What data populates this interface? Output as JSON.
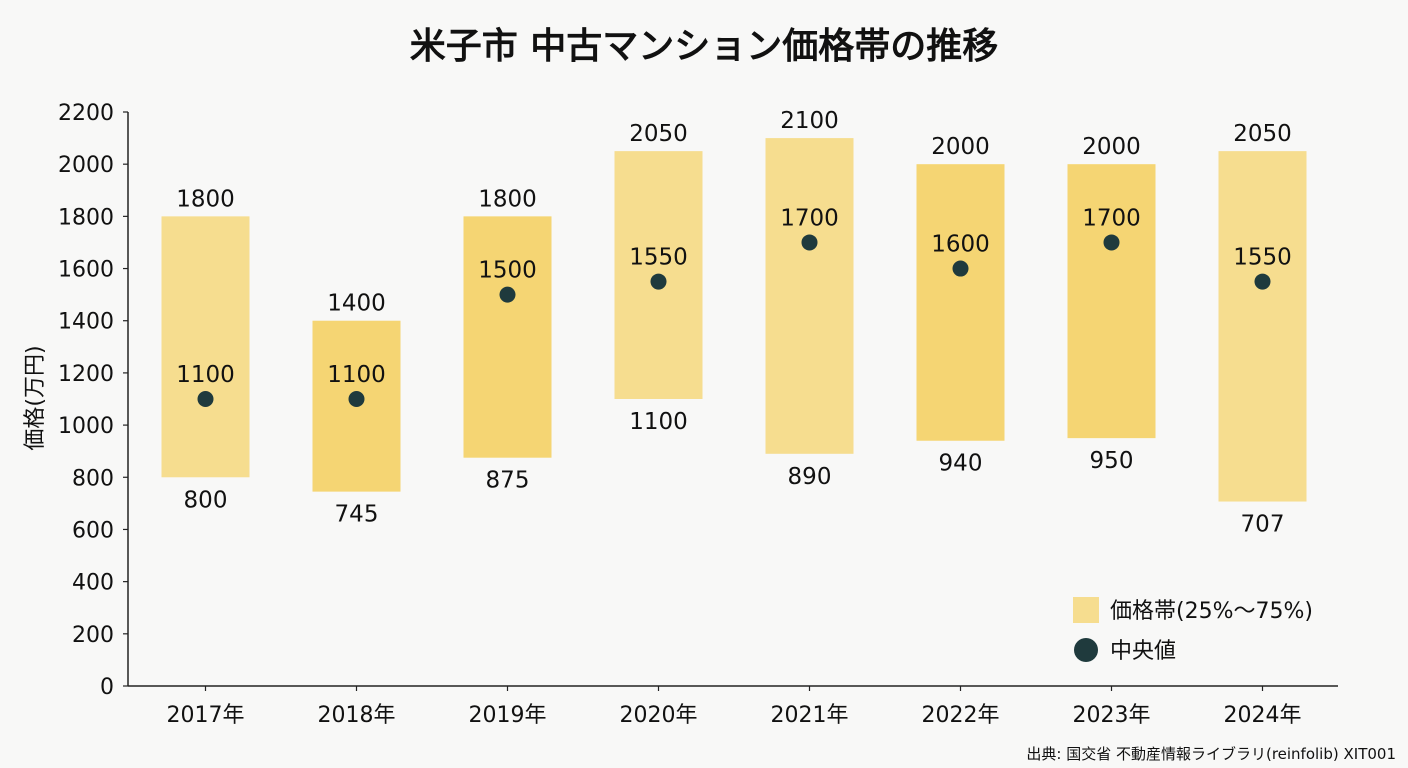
{
  "chart_data": {
    "type": "bar",
    "title": "米子市 中古マンション価格帯の推移",
    "ylabel": "価格(万円)",
    "xlabel": "",
    "ylim": [
      0,
      2200
    ],
    "yticks": [
      0,
      200,
      400,
      600,
      800,
      1000,
      1200,
      1400,
      1600,
      1800,
      2000,
      2200
    ],
    "categories": [
      "2017年",
      "2018年",
      "2019年",
      "2020年",
      "2021年",
      "2022年",
      "2023年",
      "2024年"
    ],
    "series": [
      {
        "name": "価格帯(25%〜75%)",
        "kind": "range",
        "low": [
          800,
          745,
          875,
          1100,
          890,
          940,
          950,
          707
        ],
        "high": [
          1800,
          1400,
          1800,
          2050,
          2100,
          2000,
          2000,
          2050
        ],
        "colors": [
          "#f6dd8f",
          "#f5d573",
          "#f5d573",
          "#f6dd8f",
          "#f6dd8f",
          "#f5d573",
          "#f5d573",
          "#f6dd8f"
        ]
      },
      {
        "name": "中央値",
        "kind": "point",
        "values": [
          1100,
          1100,
          1500,
          1550,
          1700,
          1600,
          1700,
          1550
        ],
        "color": "#1f3a3d"
      }
    ],
    "legend": {
      "placement": "bottom-right",
      "entries": [
        "価格帯(25%〜75%)",
        "中央値"
      ]
    },
    "grid": false,
    "source": "出典: 国交省 不動産情報ライブラリ(reinfolib) XIT001"
  }
}
